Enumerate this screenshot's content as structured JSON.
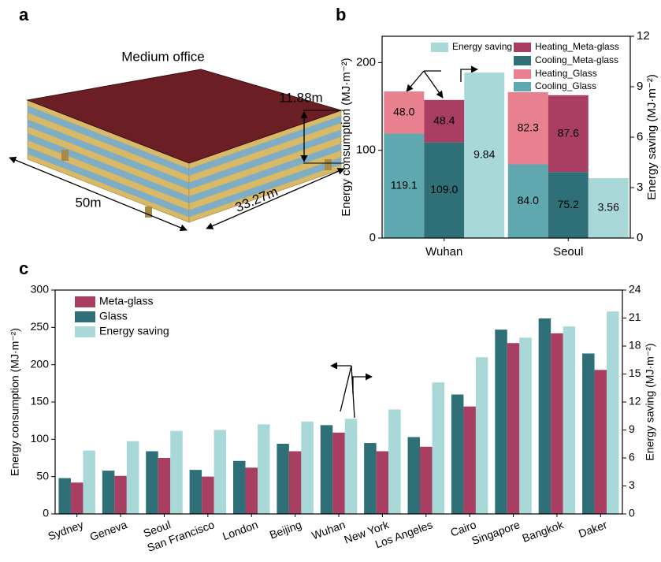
{
  "panel_labels": [
    "a",
    "b",
    "c"
  ],
  "diagram": {
    "title": "Medium office",
    "height": "11.88m",
    "length": "50m",
    "width": "33.27m"
  },
  "chart_data": [
    {
      "type": "bar",
      "stacked": true,
      "categories": [
        "Wuhan",
        "Seoul"
      ],
      "ylabel": "Energy consumption (MJ·m⁻²)",
      "y2label": "Energy saving (MJ·m⁻²)",
      "ylim": [
        0,
        230
      ],
      "yticks": [
        0,
        100,
        200
      ],
      "y2lim": [
        0,
        12
      ],
      "y2ticks": [
        0,
        3,
        6,
        9,
        12
      ],
      "series": [
        {
          "name": "Cooling_Glass",
          "color": "#5fa8b0",
          "values": [
            119.1,
            84.0
          ],
          "value_labels": [
            "119.1",
            "84.0"
          ]
        },
        {
          "name": "Heating_Glass",
          "color": "#e8808f",
          "values": [
            48.0,
            82.3
          ],
          "value_labels": [
            "48.0",
            "82.3"
          ]
        },
        {
          "name": "Cooling_Meta-glass",
          "color": "#2f6f78",
          "values": [
            109.0,
            75.2
          ],
          "value_labels": [
            "109.0",
            "75.2"
          ]
        },
        {
          "name": "Heating_Meta-glass",
          "color": "#a83f63",
          "values": [
            48.4,
            87.6
          ],
          "value_labels": [
            "48.4",
            "87.6"
          ]
        },
        {
          "name": "Energy saving",
          "color": "#a8d8d8",
          "axis": "y2",
          "values": [
            9.84,
            3.56
          ],
          "value_labels": [
            "9.84",
            "3.56"
          ]
        }
      ]
    },
    {
      "type": "bar",
      "stacked": false,
      "categories": [
        "Sydney",
        "Geneva",
        "Seoul",
        "San Francisco",
        "London",
        "Beijing",
        "Wuhan",
        "New York",
        "Los Angeles",
        "Cairo",
        "Singapore",
        "Bangkok",
        "Daker"
      ],
      "ylabel": "Energy consumption (MJ·m⁻²)",
      "y2label": "Energy saving (MJ·m⁻²)",
      "ylim": [
        0,
        300
      ],
      "yticks": [
        0,
        50,
        100,
        150,
        200,
        250,
        300
      ],
      "y2lim": [
        0,
        24
      ],
      "y2ticks": [
        0,
        3,
        6,
        9,
        12,
        15,
        18,
        21,
        24
      ],
      "series": [
        {
          "name": "Glass",
          "color": "#2f6f78",
          "values": [
            48,
            58,
            84,
            59,
            71,
            94,
            119,
            95,
            103,
            160,
            247,
            262,
            215
          ]
        },
        {
          "name": "Meta-glass",
          "color": "#a83f63",
          "values": [
            42,
            51,
            75,
            50,
            62,
            84,
            109,
            84,
            90,
            144,
            229,
            242,
            193
          ]
        },
        {
          "name": "Energy saving",
          "color": "#a8d8d8",
          "axis": "y2",
          "values": [
            6.8,
            7.8,
            8.9,
            9.0,
            9.6,
            9.9,
            10.2,
            11.2,
            14.1,
            16.8,
            18.9,
            20.1,
            21.7
          ]
        }
      ]
    }
  ]
}
